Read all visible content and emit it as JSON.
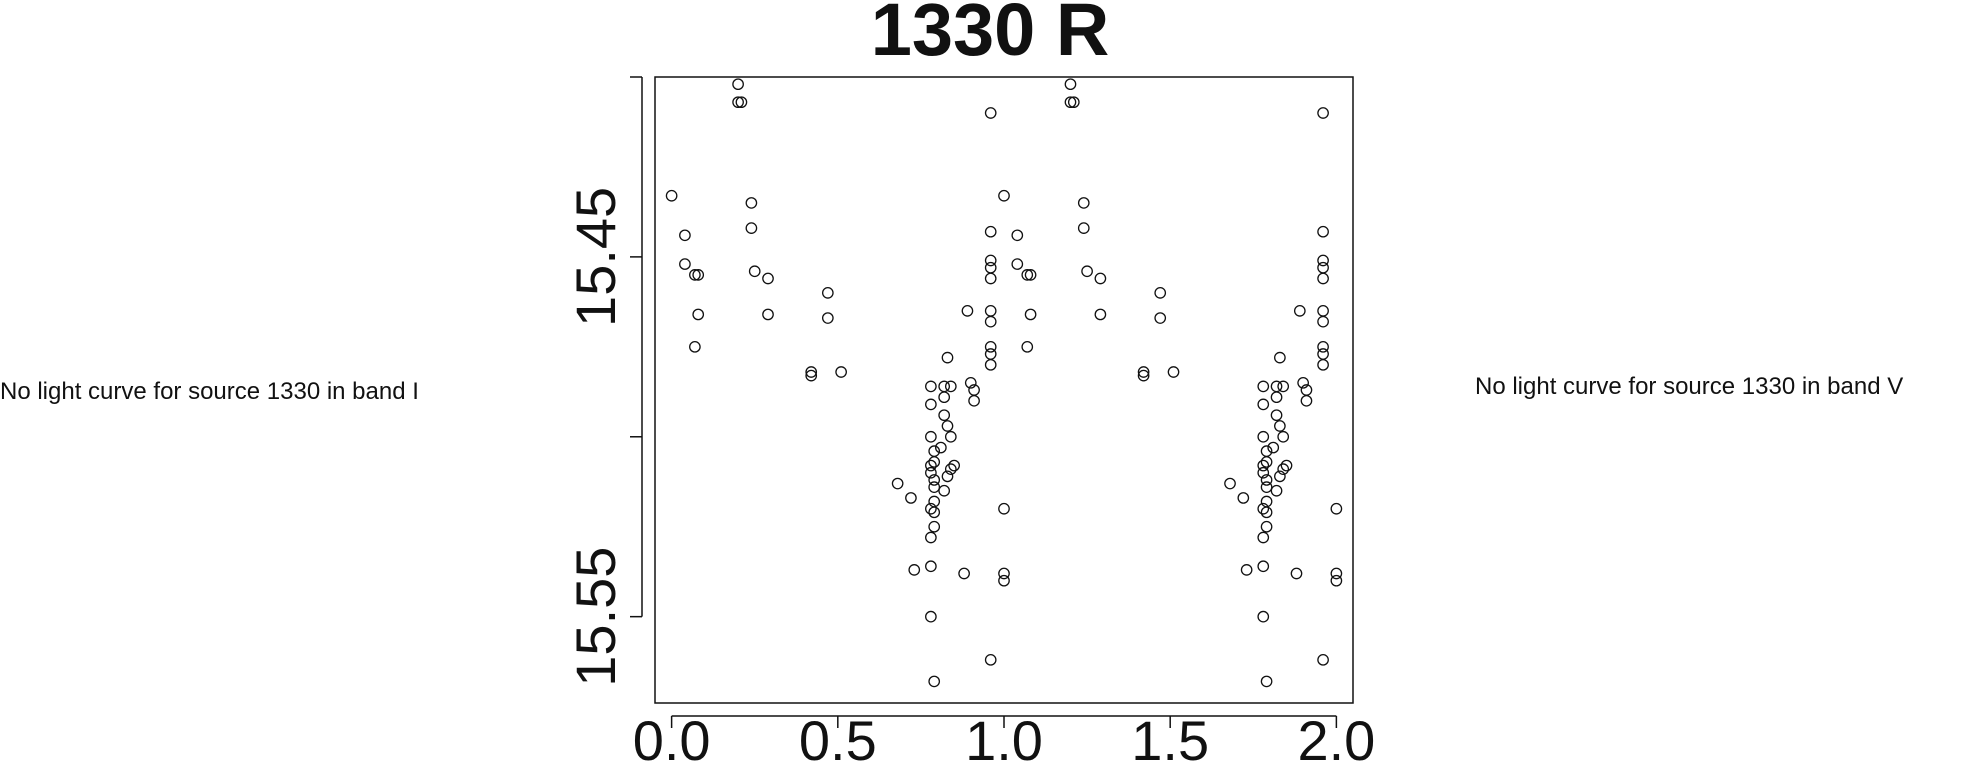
{
  "notes": {
    "left": "No light curve for source 1330 in band I",
    "right": "No light curve for source 1330 in band V"
  },
  "colors": {
    "ink": "#111111",
    "background": "#ffffff"
  },
  "chart_data": {
    "type": "scatter",
    "title": "1330 R",
    "xlabel": "",
    "ylabel": "",
    "xlim": [
      -0.05,
      2.05
    ],
    "ylim": [
      15.574,
      15.4
    ],
    "y_inverted": true,
    "x_ticks": [
      0.0,
      0.5,
      1.0,
      1.5,
      2.0
    ],
    "x_tick_labels": [
      "0.0",
      "0.5",
      "1.0",
      "1.5",
      "2.0"
    ],
    "y_ticks": [
      15.4,
      15.45,
      15.5,
      15.55
    ],
    "y_tick_labels": [
      "",
      "15.45",
      "",
      "15.55"
    ],
    "legend": "none",
    "grid": false,
    "marker": "open-circle",
    "points": [
      [
        0.0,
        15.433
      ],
      [
        0.04,
        15.444
      ],
      [
        0.04,
        15.452
      ],
      [
        0.07,
        15.455
      ],
      [
        0.08,
        15.455
      ],
      [
        0.08,
        15.466
      ],
      [
        0.07,
        15.475
      ],
      [
        0.2,
        15.402
      ],
      [
        0.2,
        15.407
      ],
      [
        0.21,
        15.407
      ],
      [
        0.24,
        15.435
      ],
      [
        0.24,
        15.442
      ],
      [
        0.25,
        15.454
      ],
      [
        0.29,
        15.456
      ],
      [
        0.29,
        15.466
      ],
      [
        0.42,
        15.482
      ],
      [
        0.42,
        15.483
      ],
      [
        0.47,
        15.46
      ],
      [
        0.47,
        15.467
      ],
      [
        0.51,
        15.482
      ],
      [
        0.68,
        15.513
      ],
      [
        0.72,
        15.517
      ],
      [
        0.73,
        15.537
      ],
      [
        0.78,
        15.486
      ],
      [
        0.78,
        15.491
      ],
      [
        0.78,
        15.5
      ],
      [
        0.79,
        15.504
      ],
      [
        0.79,
        15.507
      ],
      [
        0.78,
        15.508
      ],
      [
        0.78,
        15.51
      ],
      [
        0.79,
        15.512
      ],
      [
        0.79,
        15.514
      ],
      [
        0.79,
        15.518
      ],
      [
        0.78,
        15.52
      ],
      [
        0.79,
        15.521
      ],
      [
        0.79,
        15.525
      ],
      [
        0.78,
        15.528
      ],
      [
        0.78,
        15.536
      ],
      [
        0.78,
        15.55
      ],
      [
        0.79,
        15.568
      ],
      [
        0.81,
        15.503
      ],
      [
        0.82,
        15.489
      ],
      [
        0.82,
        15.494
      ],
      [
        0.83,
        15.478
      ],
      [
        0.83,
        15.497
      ],
      [
        0.83,
        15.511
      ],
      [
        0.82,
        15.515
      ],
      [
        0.84,
        15.509
      ],
      [
        0.84,
        15.5
      ],
      [
        0.85,
        15.508
      ],
      [
        0.82,
        15.486
      ],
      [
        0.84,
        15.486
      ],
      [
        0.88,
        15.538
      ],
      [
        0.89,
        15.465
      ],
      [
        0.9,
        15.485
      ],
      [
        0.91,
        15.49
      ],
      [
        0.91,
        15.487
      ],
      [
        0.96,
        15.41
      ],
      [
        0.96,
        15.443
      ],
      [
        0.96,
        15.451
      ],
      [
        0.96,
        15.453
      ],
      [
        0.96,
        15.456
      ],
      [
        0.96,
        15.465
      ],
      [
        0.96,
        15.468
      ],
      [
        0.96,
        15.475
      ],
      [
        0.96,
        15.477
      ],
      [
        0.96,
        15.48
      ],
      [
        0.96,
        15.562
      ],
      [
        1.0,
        15.433
      ],
      [
        1.0,
        15.52
      ],
      [
        1.0,
        15.538
      ],
      [
        1.0,
        15.54
      ],
      [
        1.04,
        15.444
      ],
      [
        1.04,
        15.452
      ],
      [
        1.07,
        15.455
      ],
      [
        1.08,
        15.455
      ],
      [
        1.08,
        15.466
      ],
      [
        1.07,
        15.475
      ],
      [
        1.2,
        15.402
      ],
      [
        1.2,
        15.407
      ],
      [
        1.21,
        15.407
      ],
      [
        1.24,
        15.435
      ],
      [
        1.24,
        15.442
      ],
      [
        1.25,
        15.454
      ],
      [
        1.29,
        15.456
      ],
      [
        1.29,
        15.466
      ],
      [
        1.42,
        15.482
      ],
      [
        1.42,
        15.483
      ],
      [
        1.47,
        15.46
      ],
      [
        1.47,
        15.467
      ],
      [
        1.51,
        15.482
      ],
      [
        1.68,
        15.513
      ],
      [
        1.72,
        15.517
      ],
      [
        1.73,
        15.537
      ],
      [
        1.78,
        15.486
      ],
      [
        1.78,
        15.491
      ],
      [
        1.78,
        15.5
      ],
      [
        1.79,
        15.504
      ],
      [
        1.79,
        15.507
      ],
      [
        1.78,
        15.508
      ],
      [
        1.78,
        15.51
      ],
      [
        1.79,
        15.512
      ],
      [
        1.79,
        15.514
      ],
      [
        1.79,
        15.518
      ],
      [
        1.78,
        15.52
      ],
      [
        1.79,
        15.521
      ],
      [
        1.79,
        15.525
      ],
      [
        1.78,
        15.528
      ],
      [
        1.78,
        15.536
      ],
      [
        1.78,
        15.55
      ],
      [
        1.79,
        15.568
      ],
      [
        1.81,
        15.503
      ],
      [
        1.82,
        15.489
      ],
      [
        1.82,
        15.494
      ],
      [
        1.83,
        15.478
      ],
      [
        1.83,
        15.497
      ],
      [
        1.83,
        15.511
      ],
      [
        1.82,
        15.515
      ],
      [
        1.84,
        15.509
      ],
      [
        1.84,
        15.5
      ],
      [
        1.85,
        15.508
      ],
      [
        1.82,
        15.486
      ],
      [
        1.84,
        15.486
      ],
      [
        1.88,
        15.538
      ],
      [
        1.89,
        15.465
      ],
      [
        1.9,
        15.485
      ],
      [
        1.91,
        15.49
      ],
      [
        1.91,
        15.487
      ],
      [
        1.96,
        15.41
      ],
      [
        1.96,
        15.443
      ],
      [
        1.96,
        15.451
      ],
      [
        1.96,
        15.453
      ],
      [
        1.96,
        15.456
      ],
      [
        1.96,
        15.465
      ],
      [
        1.96,
        15.468
      ],
      [
        1.96,
        15.475
      ],
      [
        1.96,
        15.477
      ],
      [
        1.96,
        15.48
      ],
      [
        1.96,
        15.562
      ],
      [
        2.0,
        15.52
      ],
      [
        2.0,
        15.538
      ],
      [
        2.0,
        15.54
      ]
    ]
  }
}
